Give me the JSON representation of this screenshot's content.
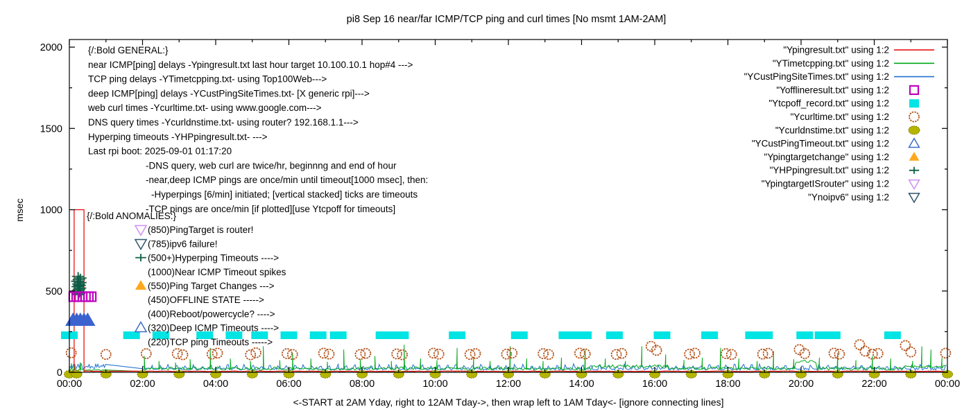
{
  "title": "pi8 Sep 16  near/far ICMP/TCP ping and curl times [No msmt 1AM-2AM]",
  "annotations": {
    "general": [
      {
        "text": "{/:Bold GENERAL:}",
        "indent": 0
      },
      {
        "text": "near ICMP[ping] delays -Ypingresult.txt last hour target 10.100.10.1 hop#4 --->",
        "indent": 0
      },
      {
        "text": "TCP ping delays -YTimetcpping.txt- using Top100Web--->",
        "indent": 0
      },
      {
        "text": "deep ICMP[ping] delays -YCustPingSiteTimes.txt- [X generic rpi]--->",
        "indent": 0
      },
      {
        "text": "web curl times -Ycurltime.txt- using www.google.com--->",
        "indent": 0
      },
      {
        "text": "DNS query times -Ycurldnstime.txt- using router? 192.168.1.1--->",
        "indent": 0
      },
      {
        "text": "Hyperping timeouts -YHPpingresult.txt- --->",
        "indent": 0
      },
      {
        "text": "Last rpi boot: 2025-09-01 01:17:20",
        "indent": 0
      },
      {
        "text": "-DNS query, web curl are twice/hr, beginnng and end of hour",
        "indent": 1
      },
      {
        "text": "-near,deep ICMP pings are once/min until timeout[1000 msec], then:",
        "indent": 1
      },
      {
        "text": "-Hyperpings [6/min] initiated; [vertical stacked] ticks are timeouts",
        "indent": 2
      },
      {
        "text": "-TCP pings are once/min [if plotted][use Ytcpoff for timeouts]",
        "indent": 1
      }
    ],
    "anomalies": [
      {
        "text": "{/:Bold ANOMALIES:}",
        "marker": null,
        "header": true
      },
      {
        "text": "(850)PingTarget is router!",
        "marker": {
          "shape": "triangle-down-open",
          "color": "#cf8ef0"
        }
      },
      {
        "text": "(785)ipv6 failure!",
        "marker": {
          "shape": "triangle-down-open",
          "color": "#2e556b"
        }
      },
      {
        "text": "(500+)Hyperping Timeouts ---->",
        "marker": {
          "shape": "plus",
          "color": "#0b5d45"
        }
      },
      {
        "text": "(1000)Near ICMP Timeout spikes",
        "marker": null
      },
      {
        "text": "(550)Ping Target Changes --->",
        "marker": {
          "shape": "triangle-up-filled",
          "color": "#ffa81e"
        }
      },
      {
        "text": "(450)OFFLINE STATE ----->",
        "marker": null
      },
      {
        "text": "(400)Reboot/powercycle? ---->",
        "marker": null
      },
      {
        "text": "(320)Deep ICMP Timeouts ---->",
        "marker": {
          "shape": "triangle-up-open",
          "color": "#3b6cc7"
        }
      },
      {
        "text": "(220)TCP ping Timeouts ----->",
        "marker": null
      }
    ]
  },
  "legend": [
    {
      "label": "\"Ypingresult.txt\" using 1:2",
      "shape": "line",
      "color": "#e60000"
    },
    {
      "label": "\"YTimetcpping.txt\" using 1:2",
      "shape": "line",
      "color": "#00a818"
    },
    {
      "label": "\"YCustPingSiteTimes.txt\" using 1:2",
      "shape": "line",
      "color": "#1f6fd0"
    },
    {
      "label": "\"Yofflineresult.txt\" using 1:2",
      "shape": "square-open",
      "color": "#bf00bf"
    },
    {
      "label": "\"Ytcpoff_record.txt\" using 1:2",
      "shape": "square-filled",
      "color": "#00e4e4"
    },
    {
      "label": "\"Ycurltime.txt\" using 1:2",
      "shape": "circle-open",
      "color": "#b4551d"
    },
    {
      "label": "\"Ycurldnstime.txt\" using 1:2",
      "shape": "circle-filled",
      "color": "#b5b500"
    },
    {
      "label": "\"YCustPingTimeout.txt\" using 1:2",
      "shape": "triangle-up-open",
      "color": "#3b6cc7"
    },
    {
      "label": "\"Ypingtargetchange\" using 1:2",
      "shape": "triangle-up-filled",
      "color": "#ffa81e"
    },
    {
      "label": "\"YHPpingresult.txt\" using 1:2",
      "shape": "plus",
      "color": "#0b5d45"
    },
    {
      "label": "\"YpingtargetISrouter\" using 1:2",
      "shape": "triangle-down-open",
      "color": "#cf8ef0"
    },
    {
      "label": "\"Ynoipv6\" using 1:2",
      "shape": "triangle-down-open",
      "color": "#2e556b"
    }
  ],
  "chart_data": {
    "type": "line",
    "title": "pi8 Sep 16  near/far ICMP/TCP ping and curl times [No msmt 1AM-2AM]",
    "xlabel": "<-START at 2AM Yday, right to 12AM Tday->, then wrap left to 1AM Tday<- [ignore connecting lines]",
    "ylabel": "msec",
    "ylim": [
      0,
      2047
    ],
    "yticks": [
      0,
      500,
      1000,
      1500,
      2000
    ],
    "xticks": [
      {
        "h": 0,
        "label": "00:00"
      },
      {
        "h": 2,
        "label": "02:00"
      },
      {
        "h": 4,
        "label": "04:00"
      },
      {
        "h": 6,
        "label": "06:00"
      },
      {
        "h": 8,
        "label": "08:00"
      },
      {
        "h": 10,
        "label": "10:00"
      },
      {
        "h": 12,
        "label": "12:00"
      },
      {
        "h": 14,
        "label": "14:00"
      },
      {
        "h": 16,
        "label": "16:00"
      },
      {
        "h": 18,
        "label": "18:00"
      },
      {
        "h": 20,
        "label": "20:00"
      },
      {
        "h": 22,
        "label": "22:00"
      },
      {
        "h": 24,
        "label": "00:00"
      }
    ],
    "x_unit": "hours",
    "x_range": [
      0,
      24
    ],
    "gap_no_measurement_hours": [
      1.0,
      2.0
    ],
    "lines": [
      {
        "name": "Ypingresult.txt",
        "color": "#e60000",
        "base_msec": 7,
        "noise_msec": 3,
        "timeout_box": {
          "t_start": 0.13,
          "t_end": 0.4,
          "msec": 1000
        }
      },
      {
        "name": "YTimetcpping.txt",
        "color": "#00a818",
        "base_msec": 20,
        "noise_msec": 13,
        "pre_gap_base_msec": 9,
        "plateaus": [
          [
            14.3,
            16.4,
            34
          ],
          [
            19.85,
            20.45,
            64
          ],
          [
            22.8,
            24,
            30
          ]
        ],
        "spikes": [
          [
            0.06,
            55
          ],
          [
            0.14,
            40
          ],
          [
            0.3,
            60
          ],
          [
            2.05,
            100
          ],
          [
            2.45,
            70
          ],
          [
            2.9,
            60
          ],
          [
            3.3,
            80
          ],
          [
            3.85,
            150
          ],
          [
            4.4,
            85
          ],
          [
            4.95,
            70
          ],
          [
            5.3,
            160
          ],
          [
            5.75,
            75
          ],
          [
            6.1,
            120
          ],
          [
            6.6,
            85
          ],
          [
            7.05,
            65
          ],
          [
            7.5,
            140
          ],
          [
            7.95,
            80
          ],
          [
            8.35,
            100
          ],
          [
            8.8,
            70
          ],
          [
            9.15,
            170
          ],
          [
            9.6,
            85
          ],
          [
            10.05,
            75
          ],
          [
            10.6,
            150
          ],
          [
            11.05,
            90
          ],
          [
            11.5,
            70
          ],
          [
            12.05,
            160
          ],
          [
            12.5,
            85
          ],
          [
            12.95,
            70
          ],
          [
            13.45,
            90
          ],
          [
            14.1,
            140
          ],
          [
            14.65,
            85
          ],
          [
            15.2,
            70
          ],
          [
            15.65,
            160
          ],
          [
            16.3,
            110
          ],
          [
            16.8,
            75
          ],
          [
            17.3,
            90
          ],
          [
            17.8,
            150
          ],
          [
            18.3,
            85
          ],
          [
            18.8,
            70
          ],
          [
            19.25,
            130
          ],
          [
            19.8,
            80
          ],
          [
            20.5,
            90
          ],
          [
            21.0,
            120
          ],
          [
            21.5,
            75
          ],
          [
            21.95,
            100
          ],
          [
            22.45,
            85
          ],
          [
            23.05,
            70
          ],
          [
            23.3,
            160
          ],
          [
            23.55,
            140
          ],
          [
            23.85,
            90
          ]
        ]
      },
      {
        "name": "YCustPingSiteTimes.txt",
        "color": "#1f6fd0",
        "base_msec": 14,
        "noise_msec": 14,
        "bump_msec": 16,
        "pre_gap_base_msec": 20
      }
    ],
    "markers": [
      {
        "name": "Ytcpoff_record.txt",
        "shape": "square-filled",
        "color": "#00e4e4",
        "msec": 228,
        "times": [
          0.0,
          1.7,
          2.5,
          3.7,
          4.5,
          5.2,
          6.0,
          6.8,
          7.35,
          8.6,
          9.05,
          10.6,
          12.3,
          13.6,
          14.05,
          14.9,
          16.2,
          17.5,
          18.7,
          19.0,
          20.1,
          20.6,
          20.85,
          22.5
        ]
      },
      {
        "name": "Ycurltime.txt",
        "shape": "circle-open",
        "color": "#b4551d",
        "points": [
          [
            0.05,
            120
          ],
          [
            1.0,
            110
          ],
          [
            2.1,
            115
          ],
          [
            2.95,
            115
          ],
          [
            3.1,
            108
          ],
          [
            3.9,
            112
          ],
          [
            4.05,
            118
          ],
          [
            4.95,
            108
          ],
          [
            5.1,
            120
          ],
          [
            5.95,
            115
          ],
          [
            6.1,
            110
          ],
          [
            6.95,
            118
          ],
          [
            7.1,
            112
          ],
          [
            7.95,
            110
          ],
          [
            8.1,
            116
          ],
          [
            8.95,
            113
          ],
          [
            9.1,
            108
          ],
          [
            9.95,
            118
          ],
          [
            10.1,
            112
          ],
          [
            10.95,
            110
          ],
          [
            11.1,
            115
          ],
          [
            11.95,
            112
          ],
          [
            12.1,
            118
          ],
          [
            12.95,
            115
          ],
          [
            13.1,
            110
          ],
          [
            13.95,
            118
          ],
          [
            14.1,
            113
          ],
          [
            14.95,
            110
          ],
          [
            15.1,
            116
          ],
          [
            15.9,
            160
          ],
          [
            16.05,
            135
          ],
          [
            16.95,
            112
          ],
          [
            17.1,
            118
          ],
          [
            17.95,
            115
          ],
          [
            18.1,
            110
          ],
          [
            18.95,
            112
          ],
          [
            19.1,
            117
          ],
          [
            19.95,
            140
          ],
          [
            20.1,
            115
          ],
          [
            20.9,
            118
          ],
          [
            21.05,
            112
          ],
          [
            21.6,
            170
          ],
          [
            21.75,
            130
          ],
          [
            21.95,
            112
          ],
          [
            22.1,
            116
          ],
          [
            22.85,
            165
          ],
          [
            23.0,
            125
          ],
          [
            23.95,
            118
          ]
        ]
      },
      {
        "name": "Ycurldnstime.txt",
        "shape": "circle-filled",
        "color": "#b5b500",
        "msec": -12,
        "times": [
          0,
          0.2,
          1,
          2,
          3,
          4,
          5,
          6,
          7,
          8,
          9,
          10,
          11,
          12,
          13,
          14,
          15,
          16,
          17,
          18,
          19,
          20,
          21,
          22,
          23,
          24
        ]
      },
      {
        "name": "YHPpingresult.txt",
        "shape": "plus",
        "color": "#0b5d45",
        "points": [
          [
            0.24,
            590
          ],
          [
            0.3,
            580
          ],
          [
            0.26,
            570
          ],
          [
            0.22,
            560
          ],
          [
            0.3,
            552
          ],
          [
            0.25,
            543
          ],
          [
            0.28,
            535
          ],
          [
            0.23,
            527
          ],
          [
            0.29,
            518
          ],
          [
            0.26,
            510
          ],
          [
            0.24,
            502
          ],
          [
            0.3,
            494
          ],
          [
            0.27,
            486
          ],
          [
            0.25,
            478
          ]
        ]
      },
      {
        "name": "Yofflineresult.txt",
        "shape": "square-open",
        "color": "#bf00bf",
        "msec": 465,
        "times": [
          0.12,
          0.2,
          0.28,
          0.44,
          0.52,
          0.6
        ]
      },
      {
        "name": "YCustPingTimeout.txt",
        "shape": "triangle-up-filled",
        "color": "#3b62cf",
        "msec": 320,
        "times": [
          0.1,
          0.2,
          0.3,
          0.4,
          0.5
        ]
      },
      {
        "name": "hyperping-baseline-ticks",
        "shape": "vtick",
        "color": "#00a818",
        "t_start": 2,
        "t_end": 24,
        "step": 0.04,
        "max_msec": 11
      }
    ]
  }
}
